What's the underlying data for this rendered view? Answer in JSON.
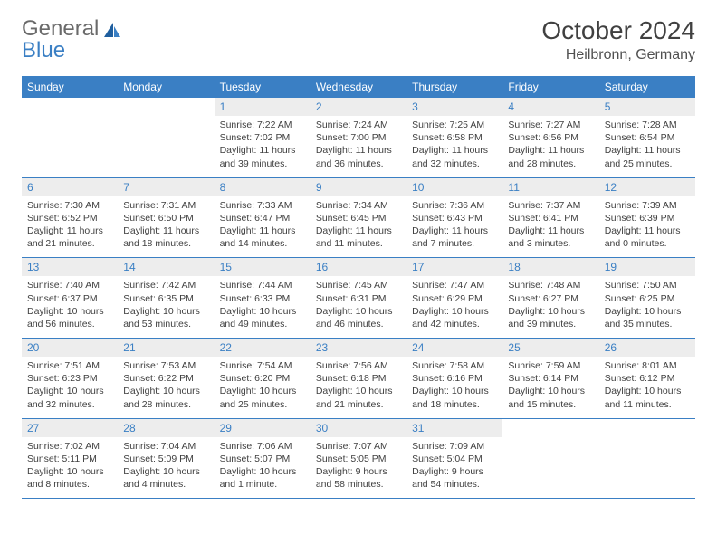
{
  "logo": {
    "text1": "General",
    "text2": "Blue"
  },
  "title": "October 2024",
  "location": "Heilbronn, Germany",
  "colors": {
    "accent": "#3a7fc4",
    "header_bg": "#3a7fc4",
    "header_text": "#ffffff",
    "daynum_bg": "#ededed",
    "daynum_text": "#3a7fc4",
    "body_text": "#404040",
    "logo_gray": "#6a6a6a",
    "rule": "#3a7fc4"
  },
  "day_headers": [
    "Sunday",
    "Monday",
    "Tuesday",
    "Wednesday",
    "Thursday",
    "Friday",
    "Saturday"
  ],
  "weeks": [
    [
      {
        "n": "",
        "sunrise": "",
        "sunset": "",
        "daylight": ""
      },
      {
        "n": "",
        "sunrise": "",
        "sunset": "",
        "daylight": ""
      },
      {
        "n": "1",
        "sunrise": "Sunrise: 7:22 AM",
        "sunset": "Sunset: 7:02 PM",
        "daylight": "Daylight: 11 hours and 39 minutes."
      },
      {
        "n": "2",
        "sunrise": "Sunrise: 7:24 AM",
        "sunset": "Sunset: 7:00 PM",
        "daylight": "Daylight: 11 hours and 36 minutes."
      },
      {
        "n": "3",
        "sunrise": "Sunrise: 7:25 AM",
        "sunset": "Sunset: 6:58 PM",
        "daylight": "Daylight: 11 hours and 32 minutes."
      },
      {
        "n": "4",
        "sunrise": "Sunrise: 7:27 AM",
        "sunset": "Sunset: 6:56 PM",
        "daylight": "Daylight: 11 hours and 28 minutes."
      },
      {
        "n": "5",
        "sunrise": "Sunrise: 7:28 AM",
        "sunset": "Sunset: 6:54 PM",
        "daylight": "Daylight: 11 hours and 25 minutes."
      }
    ],
    [
      {
        "n": "6",
        "sunrise": "Sunrise: 7:30 AM",
        "sunset": "Sunset: 6:52 PM",
        "daylight": "Daylight: 11 hours and 21 minutes."
      },
      {
        "n": "7",
        "sunrise": "Sunrise: 7:31 AM",
        "sunset": "Sunset: 6:50 PM",
        "daylight": "Daylight: 11 hours and 18 minutes."
      },
      {
        "n": "8",
        "sunrise": "Sunrise: 7:33 AM",
        "sunset": "Sunset: 6:47 PM",
        "daylight": "Daylight: 11 hours and 14 minutes."
      },
      {
        "n": "9",
        "sunrise": "Sunrise: 7:34 AM",
        "sunset": "Sunset: 6:45 PM",
        "daylight": "Daylight: 11 hours and 11 minutes."
      },
      {
        "n": "10",
        "sunrise": "Sunrise: 7:36 AM",
        "sunset": "Sunset: 6:43 PM",
        "daylight": "Daylight: 11 hours and 7 minutes."
      },
      {
        "n": "11",
        "sunrise": "Sunrise: 7:37 AM",
        "sunset": "Sunset: 6:41 PM",
        "daylight": "Daylight: 11 hours and 3 minutes."
      },
      {
        "n": "12",
        "sunrise": "Sunrise: 7:39 AM",
        "sunset": "Sunset: 6:39 PM",
        "daylight": "Daylight: 11 hours and 0 minutes."
      }
    ],
    [
      {
        "n": "13",
        "sunrise": "Sunrise: 7:40 AM",
        "sunset": "Sunset: 6:37 PM",
        "daylight": "Daylight: 10 hours and 56 minutes."
      },
      {
        "n": "14",
        "sunrise": "Sunrise: 7:42 AM",
        "sunset": "Sunset: 6:35 PM",
        "daylight": "Daylight: 10 hours and 53 minutes."
      },
      {
        "n": "15",
        "sunrise": "Sunrise: 7:44 AM",
        "sunset": "Sunset: 6:33 PM",
        "daylight": "Daylight: 10 hours and 49 minutes."
      },
      {
        "n": "16",
        "sunrise": "Sunrise: 7:45 AM",
        "sunset": "Sunset: 6:31 PM",
        "daylight": "Daylight: 10 hours and 46 minutes."
      },
      {
        "n": "17",
        "sunrise": "Sunrise: 7:47 AM",
        "sunset": "Sunset: 6:29 PM",
        "daylight": "Daylight: 10 hours and 42 minutes."
      },
      {
        "n": "18",
        "sunrise": "Sunrise: 7:48 AM",
        "sunset": "Sunset: 6:27 PM",
        "daylight": "Daylight: 10 hours and 39 minutes."
      },
      {
        "n": "19",
        "sunrise": "Sunrise: 7:50 AM",
        "sunset": "Sunset: 6:25 PM",
        "daylight": "Daylight: 10 hours and 35 minutes."
      }
    ],
    [
      {
        "n": "20",
        "sunrise": "Sunrise: 7:51 AM",
        "sunset": "Sunset: 6:23 PM",
        "daylight": "Daylight: 10 hours and 32 minutes."
      },
      {
        "n": "21",
        "sunrise": "Sunrise: 7:53 AM",
        "sunset": "Sunset: 6:22 PM",
        "daylight": "Daylight: 10 hours and 28 minutes."
      },
      {
        "n": "22",
        "sunrise": "Sunrise: 7:54 AM",
        "sunset": "Sunset: 6:20 PM",
        "daylight": "Daylight: 10 hours and 25 minutes."
      },
      {
        "n": "23",
        "sunrise": "Sunrise: 7:56 AM",
        "sunset": "Sunset: 6:18 PM",
        "daylight": "Daylight: 10 hours and 21 minutes."
      },
      {
        "n": "24",
        "sunrise": "Sunrise: 7:58 AM",
        "sunset": "Sunset: 6:16 PM",
        "daylight": "Daylight: 10 hours and 18 minutes."
      },
      {
        "n": "25",
        "sunrise": "Sunrise: 7:59 AM",
        "sunset": "Sunset: 6:14 PM",
        "daylight": "Daylight: 10 hours and 15 minutes."
      },
      {
        "n": "26",
        "sunrise": "Sunrise: 8:01 AM",
        "sunset": "Sunset: 6:12 PM",
        "daylight": "Daylight: 10 hours and 11 minutes."
      }
    ],
    [
      {
        "n": "27",
        "sunrise": "Sunrise: 7:02 AM",
        "sunset": "Sunset: 5:11 PM",
        "daylight": "Daylight: 10 hours and 8 minutes."
      },
      {
        "n": "28",
        "sunrise": "Sunrise: 7:04 AM",
        "sunset": "Sunset: 5:09 PM",
        "daylight": "Daylight: 10 hours and 4 minutes."
      },
      {
        "n": "29",
        "sunrise": "Sunrise: 7:06 AM",
        "sunset": "Sunset: 5:07 PM",
        "daylight": "Daylight: 10 hours and 1 minute."
      },
      {
        "n": "30",
        "sunrise": "Sunrise: 7:07 AM",
        "sunset": "Sunset: 5:05 PM",
        "daylight": "Daylight: 9 hours and 58 minutes."
      },
      {
        "n": "31",
        "sunrise": "Sunrise: 7:09 AM",
        "sunset": "Sunset: 5:04 PM",
        "daylight": "Daylight: 9 hours and 54 minutes."
      },
      {
        "n": "",
        "sunrise": "",
        "sunset": "",
        "daylight": ""
      },
      {
        "n": "",
        "sunrise": "",
        "sunset": "",
        "daylight": ""
      }
    ]
  ]
}
